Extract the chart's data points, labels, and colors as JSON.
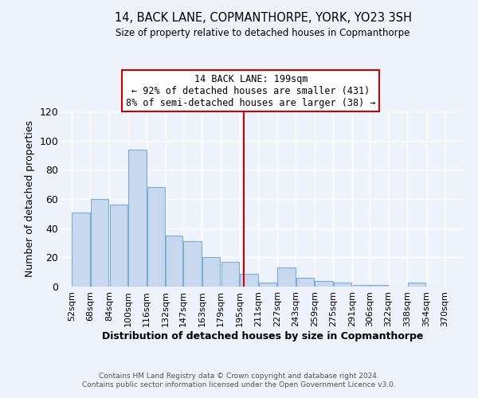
{
  "title": "14, BACK LANE, COPMANTHORPE, YORK, YO23 3SH",
  "subtitle": "Size of property relative to detached houses in Copmanthorpe",
  "xlabel": "Distribution of detached houses by size in Copmanthorpe",
  "ylabel": "Number of detached properties",
  "bar_color": "#c8d8ee",
  "bar_edge_color": "#7aafd4",
  "bg_color": "#eef2fa",
  "grid_color": "white",
  "annotation_line_color": "#cc0000",
  "annotation_box_edge_color": "#cc0000",
  "annotation_text": "14 BACK LANE: 199sqm\n← 92% of detached houses are smaller (431)\n8% of semi-detached houses are larger (38) →",
  "property_line_x": 199,
  "bins_left": [
    52,
    68,
    84,
    100,
    116,
    132,
    147,
    163,
    179,
    195,
    211,
    227,
    243,
    259,
    275,
    291,
    306,
    322,
    338,
    354
  ],
  "bin_width": [
    16,
    16,
    16,
    16,
    16,
    15,
    16,
    16,
    16,
    16,
    16,
    16,
    16,
    16,
    16,
    15,
    16,
    16,
    16,
    16
  ],
  "values": [
    51,
    60,
    56,
    94,
    68,
    35,
    31,
    20,
    17,
    9,
    3,
    13,
    6,
    4,
    3,
    1,
    1,
    0,
    3,
    0
  ],
  "xlim_left": 44,
  "xlim_right": 386,
  "ylim_top": 120,
  "yticks": [
    0,
    20,
    40,
    60,
    80,
    100,
    120
  ],
  "tick_labels": [
    "52sqm",
    "68sqm",
    "84sqm",
    "100sqm",
    "116sqm",
    "132sqm",
    "147sqm",
    "163sqm",
    "179sqm",
    "195sqm",
    "211sqm",
    "227sqm",
    "243sqm",
    "259sqm",
    "275sqm",
    "291sqm",
    "306sqm",
    "322sqm",
    "338sqm",
    "354sqm",
    "370sqm"
  ],
  "tick_positions": [
    52,
    68,
    84,
    100,
    116,
    132,
    147,
    163,
    179,
    195,
    211,
    227,
    243,
    259,
    275,
    291,
    306,
    322,
    338,
    354,
    370
  ],
  "footer_line1": "Contains HM Land Registry data © Crown copyright and database right 2024.",
  "footer_line2": "Contains public sector information licensed under the Open Government Licence v3.0."
}
